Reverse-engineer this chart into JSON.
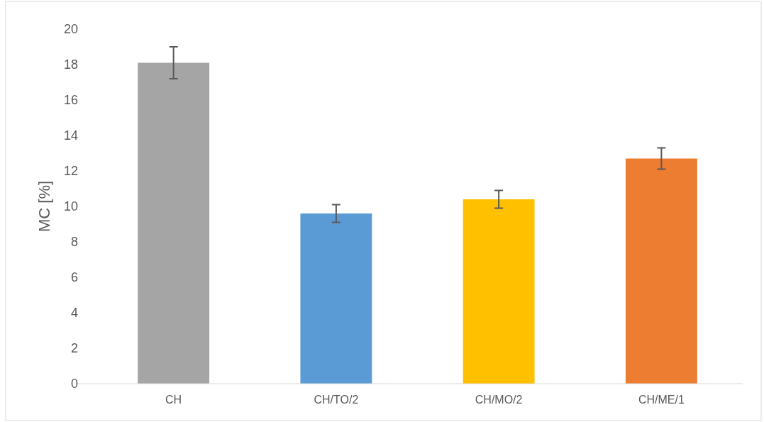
{
  "chart_data": {
    "type": "bar",
    "ylabel": "MC [%]",
    "categories": [
      "CH",
      "CH/TO/2",
      "CH/MO/2",
      "CH/ME/1"
    ],
    "values": [
      18.1,
      9.6,
      10.4,
      12.7
    ],
    "errors": [
      0.9,
      0.5,
      0.5,
      0.6
    ],
    "colors": [
      "#a5a5a5",
      "#5b9bd5",
      "#ffc000",
      "#ed7d31"
    ],
    "ylim": [
      0,
      20
    ],
    "yticks": [
      0,
      2,
      4,
      6,
      8,
      10,
      12,
      14,
      16,
      18,
      20
    ],
    "grid": false
  }
}
